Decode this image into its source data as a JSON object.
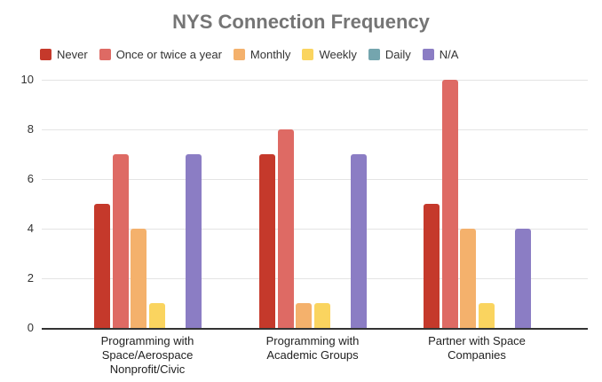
{
  "chart_data": {
    "type": "bar",
    "title": "NYS Connection Frequency",
    "xlabel": "",
    "ylabel": "",
    "ylim": [
      0,
      10
    ],
    "yticks": [
      0,
      2,
      4,
      6,
      8,
      10
    ],
    "grid": true,
    "legend_position": "top",
    "categories": [
      "Programming with Space/Aerospace Nonprofit/Civic",
      "Programming with Academic Groups",
      "Partner with Space Companies"
    ],
    "category_lines": [
      [
        "Programming with",
        "Space/Aerospace",
        "Nonprofit/Civic"
      ],
      [
        "Programming with",
        "Academic Groups"
      ],
      [
        "Partner with Space",
        "Companies"
      ]
    ],
    "series": [
      {
        "name": "Never",
        "color": "#C5392B",
        "values": [
          5,
          7,
          5
        ]
      },
      {
        "name": "Once or twice a year",
        "color": "#DE6A64",
        "values": [
          7,
          8,
          10
        ]
      },
      {
        "name": "Monthly",
        "color": "#F4B16C",
        "values": [
          4,
          1,
          4
        ]
      },
      {
        "name": "Weekly",
        "color": "#FAD45F",
        "values": [
          1,
          1,
          1
        ]
      },
      {
        "name": "Daily",
        "color": "#74A5AE",
        "values": [
          0,
          0,
          0
        ]
      },
      {
        "name": "N/A",
        "color": "#8B7DC4",
        "values": [
          7,
          7,
          4
        ]
      }
    ]
  },
  "colors": {
    "title": "#757575",
    "gridline": "#E4E4E4",
    "axis_baseline": "#333333",
    "tick_text": "#333333",
    "category_text": "#1f1f1f",
    "background": "#ffffff"
  }
}
